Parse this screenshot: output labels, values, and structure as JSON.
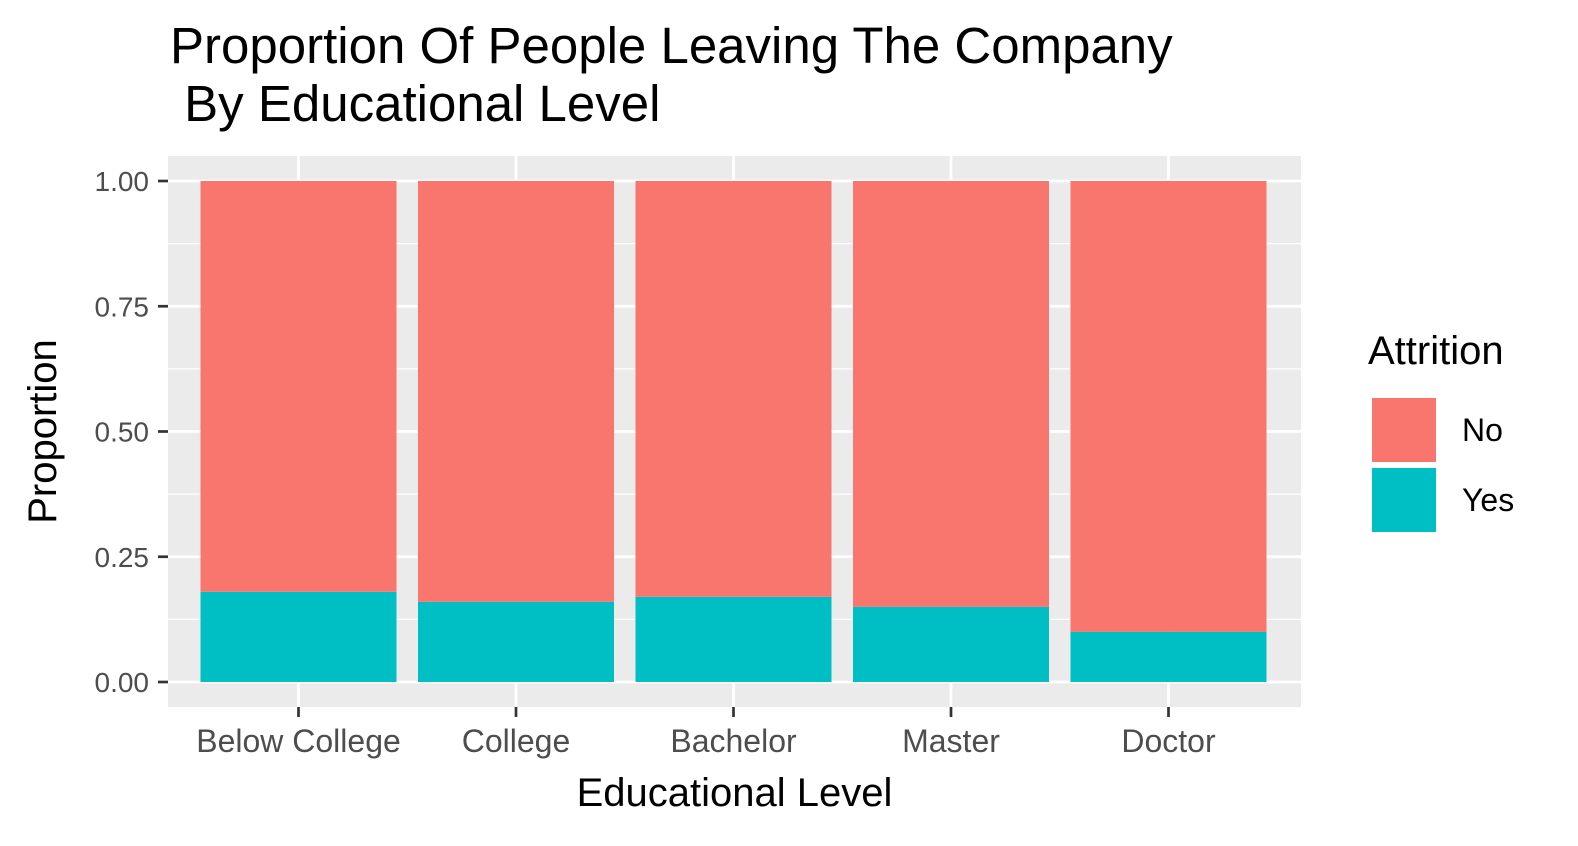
{
  "chart_data": {
    "type": "bar",
    "stacked": true,
    "title_lines": [
      "Proportion Of People Leaving The Company",
      " By Educational Level"
    ],
    "xlabel": "Educational Level",
    "ylabel": "Proportion",
    "categories": [
      "Below College",
      "College",
      "Bachelor",
      "Master",
      "Doctor"
    ],
    "series": [
      {
        "name": "Yes",
        "color": "#00BFC4",
        "values": [
          0.18,
          0.16,
          0.17,
          0.15,
          0.1
        ]
      },
      {
        "name": "No",
        "color": "#F8766D",
        "values": [
          0.82,
          0.84,
          0.83,
          0.85,
          0.9
        ]
      }
    ],
    "ylim": [
      0,
      1
    ],
    "yticks": [
      "0.00",
      "0.25",
      "0.50",
      "0.75",
      "1.00"
    ],
    "grid": true,
    "legend": {
      "title": "Attrition",
      "position": "right",
      "entries": [
        {
          "label": "No",
          "color": "#F8766D"
        },
        {
          "label": "Yes",
          "color": "#00BFC4"
        }
      ]
    }
  }
}
